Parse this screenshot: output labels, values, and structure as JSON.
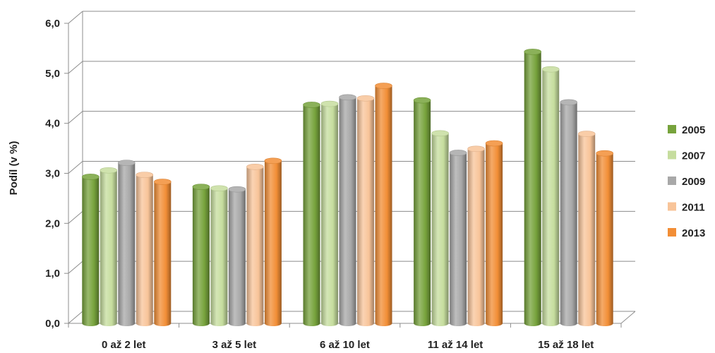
{
  "chart_data": {
    "type": "bar",
    "ylabel": "Podíl (v %)",
    "xlabel": "",
    "ylim": [
      0,
      6
    ],
    "yticks": [
      "0,0",
      "1,0",
      "2,0",
      "3,0",
      "4,0",
      "5,0",
      "6,0"
    ],
    "grid": true,
    "legend_position": "right",
    "categories": [
      "0 až 2 let",
      "3 až 5 let",
      "6 až 10 let",
      "11 až 14 let",
      "15 až 18 let"
    ],
    "series": [
      {
        "name": "2005",
        "color": "#77a33c",
        "values": [
          2.93,
          2.73,
          4.37,
          4.46,
          5.43
        ]
      },
      {
        "name": "2007",
        "color": "#c6dd9e",
        "values": [
          3.06,
          2.7,
          4.39,
          3.8,
          5.08
        ]
      },
      {
        "name": "2009",
        "color": "#a8a8a8",
        "values": [
          3.21,
          2.68,
          4.52,
          3.41,
          4.42
        ]
      },
      {
        "name": "2011",
        "color": "#f8c499",
        "values": [
          2.97,
          3.13,
          4.5,
          3.49,
          3.79
        ]
      },
      {
        "name": "2013",
        "color": "#f28e36",
        "values": [
          2.83,
          3.25,
          4.75,
          3.6,
          3.4
        ]
      }
    ]
  }
}
